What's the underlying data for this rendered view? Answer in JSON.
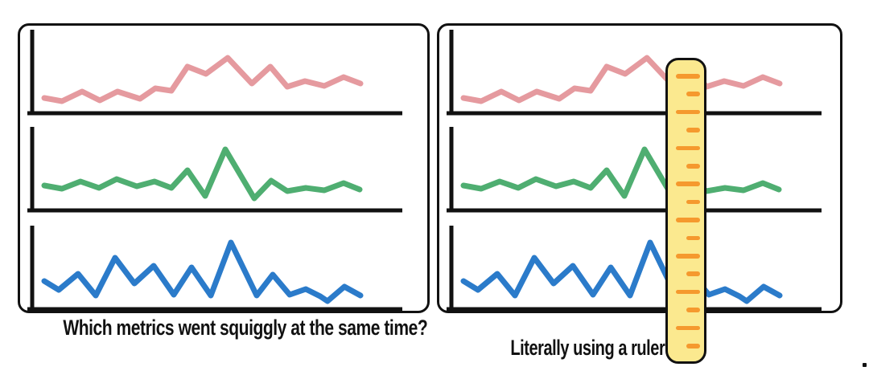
{
  "captions": {
    "left": "Which metrics went squiggly at the same time?",
    "right": "Literally using a ruler"
  },
  "colors": {
    "background": "#ffffff",
    "ink": "#111111",
    "pink": "#e59a9f",
    "green": "#4fae71",
    "blue": "#2b7bca",
    "ruler_fill": "#fbe98f",
    "ruler_tick": "#f5992e"
  },
  "chart_data": {
    "type": "line",
    "title": "",
    "xlabel": "",
    "ylabel": "",
    "grid": false,
    "axes": "bare L-shaped axes, no tick labels",
    "series": [
      {
        "name": "pink-metric",
        "color_key": "pink",
        "points": [
          [
            23,
            89
          ],
          [
            45,
            93
          ],
          [
            70,
            81
          ],
          [
            92,
            92
          ],
          [
            114,
            81
          ],
          [
            142,
            90
          ],
          [
            161,
            77
          ],
          [
            181,
            80
          ],
          [
            201,
            50
          ],
          [
            224,
            59
          ],
          [
            251,
            39
          ],
          [
            281,
            71
          ],
          [
            304,
            50
          ],
          [
            325,
            75
          ],
          [
            347,
            68
          ],
          [
            371,
            74
          ],
          [
            395,
            63
          ],
          [
            416,
            71
          ]
        ]
      },
      {
        "name": "green-metric",
        "color_key": "green",
        "points": [
          [
            23,
            77
          ],
          [
            45,
            81
          ],
          [
            68,
            72
          ],
          [
            91,
            80
          ],
          [
            113,
            69
          ],
          [
            138,
            78
          ],
          [
            160,
            72
          ],
          [
            181,
            80
          ],
          [
            201,
            58
          ],
          [
            223,
            90
          ],
          [
            248,
            32
          ],
          [
            284,
            93
          ],
          [
            305,
            71
          ],
          [
            325,
            84
          ],
          [
            348,
            80
          ],
          [
            371,
            83
          ],
          [
            395,
            74
          ],
          [
            415,
            82
          ]
        ]
      },
      {
        "name": "blue-metric",
        "color_key": "blue",
        "points": [
          [
            23,
            73
          ],
          [
            41,
            84
          ],
          [
            65,
            64
          ],
          [
            87,
            91
          ],
          [
            111,
            44
          ],
          [
            135,
            76
          ],
          [
            159,
            54
          ],
          [
            184,
            90
          ],
          [
            206,
            56
          ],
          [
            230,
            91
          ],
          [
            255,
            25
          ],
          [
            287,
            91
          ],
          [
            307,
            65
          ],
          [
            328,
            90
          ],
          [
            348,
            83
          ],
          [
            366,
            92
          ],
          [
            375,
            98
          ],
          [
            396,
            80
          ],
          [
            416,
            91
          ]
        ]
      }
    ]
  },
  "panels": [
    {
      "name": "small-multiples",
      "charts": [
        "pink-metric",
        "green-metric",
        "blue-metric"
      ]
    },
    {
      "name": "ruler-overlay",
      "charts": [
        "pink-metric",
        "green-metric",
        "blue-metric"
      ]
    }
  ],
  "ruler": {
    "tick_count": 16,
    "pattern": "alternating long and short ticks, starting long"
  }
}
